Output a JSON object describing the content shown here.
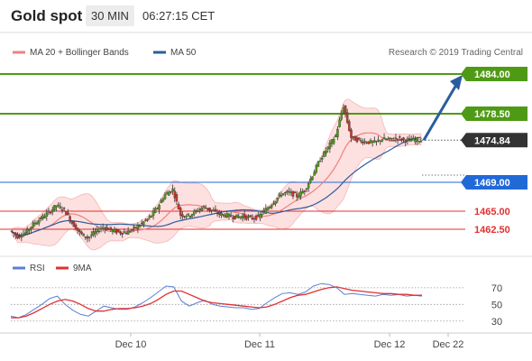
{
  "header": {
    "title": "Gold spot",
    "interval": "30 MIN",
    "time": "06:27:15 CET"
  },
  "legend": [
    {
      "label": "MA 20 + Bollinger Bands",
      "color": "#f08080"
    },
    {
      "label": "MA 50",
      "color": "#2a5d9f"
    }
  ],
  "credit": "Research © 2019 Trading Central",
  "rsi_legend": [
    {
      "label": "RSI",
      "color": "#5b7fd6"
    },
    {
      "label": "9MA",
      "color": "#e23030"
    }
  ],
  "x_labels": [
    "Dec 10",
    "Dec 11",
    "Dec 12",
    "Dec 22"
  ],
  "levels": [
    {
      "value": 1484.0,
      "label": "1484.00",
      "kind": "resistance",
      "color": "#4f9a15"
    },
    {
      "value": 1478.5,
      "label": "1478.50",
      "kind": "resistance",
      "color": "#4f9a15"
    },
    {
      "value": 1474.84,
      "label": "1474.84",
      "kind": "last",
      "color": "#333333"
    },
    {
      "value": 1469.0,
      "label": "1469.00",
      "kind": "pivot",
      "color": "#2269d8"
    },
    {
      "value": 1465.0,
      "label": "1465.00",
      "kind": "support",
      "color": "#e23030"
    },
    {
      "value": 1462.5,
      "label": "1462.50",
      "kind": "support",
      "color": "#e23030"
    }
  ],
  "rsi_ticks": [
    70,
    50,
    30
  ],
  "chart_data": [
    {
      "type": "candlestick",
      "title": "Gold spot",
      "interval": "30 MIN",
      "x": [
        "Dec 10",
        "Dec 11",
        "Dec 12"
      ],
      "ylim": [
        1459.5,
        1485.5
      ],
      "price_path": [
        1462.3,
        1461.5,
        1462.0,
        1463.2,
        1464.0,
        1464.8,
        1465.8,
        1465.2,
        1463.4,
        1462.0,
        1461.3,
        1462.1,
        1462.8,
        1462.4,
        1462.1,
        1462.0,
        1462.6,
        1463.3,
        1464.1,
        1465.5,
        1467.3,
        1468.0,
        1464.5,
        1464.4,
        1465.0,
        1465.6,
        1465.1,
        1464.6,
        1464.4,
        1464.2,
        1464.3,
        1464.0,
        1464.2,
        1465.2,
        1466.3,
        1467.4,
        1467.6,
        1467.1,
        1467.9,
        1470.0,
        1472.2,
        1473.8,
        1475.5,
        1479.5,
        1475.2,
        1474.8,
        1474.6,
        1474.5,
        1475.0,
        1474.9,
        1475.1,
        1474.8,
        1474.9,
        1474.84
      ],
      "projection": {
        "from": 1474.84,
        "to": 1484.0,
        "direction": "up"
      },
      "levels": [
        1484.0,
        1478.5,
        1469.0,
        1465.0,
        1462.5
      ],
      "last": 1474.84,
      "series": [
        {
          "name": "MA 20 + Bollinger Bands"
        },
        {
          "name": "MA 50"
        }
      ]
    },
    {
      "type": "line",
      "title": "RSI",
      "ylim": [
        20,
        85
      ],
      "yticks": [
        70,
        50,
        30
      ],
      "series": [
        {
          "name": "RSI",
          "values": [
            36,
            34,
            38,
            44,
            50,
            57,
            60,
            50,
            43,
            38,
            36,
            42,
            48,
            46,
            44,
            44,
            47,
            52,
            58,
            65,
            72,
            71,
            54,
            48,
            52,
            55,
            50,
            48,
            47,
            46,
            46,
            44,
            45,
            52,
            58,
            63,
            64,
            62,
            65,
            72,
            75,
            74,
            70,
            62,
            63,
            62,
            61,
            60,
            62,
            61,
            62,
            60,
            61,
            60
          ]
        },
        {
          "name": "9MA",
          "values": [
            34,
            34,
            36,
            40,
            45,
            50,
            54,
            56,
            54,
            50,
            45,
            42,
            42,
            44,
            45,
            45,
            46,
            48,
            51,
            56,
            62,
            66,
            66,
            62,
            58,
            54,
            52,
            51,
            50,
            49,
            48,
            47,
            46,
            47,
            50,
            54,
            58,
            61,
            62,
            65,
            68,
            70,
            71,
            69,
            67,
            66,
            65,
            64,
            63,
            63,
            62,
            62,
            61,
            61
          ]
        }
      ]
    }
  ]
}
